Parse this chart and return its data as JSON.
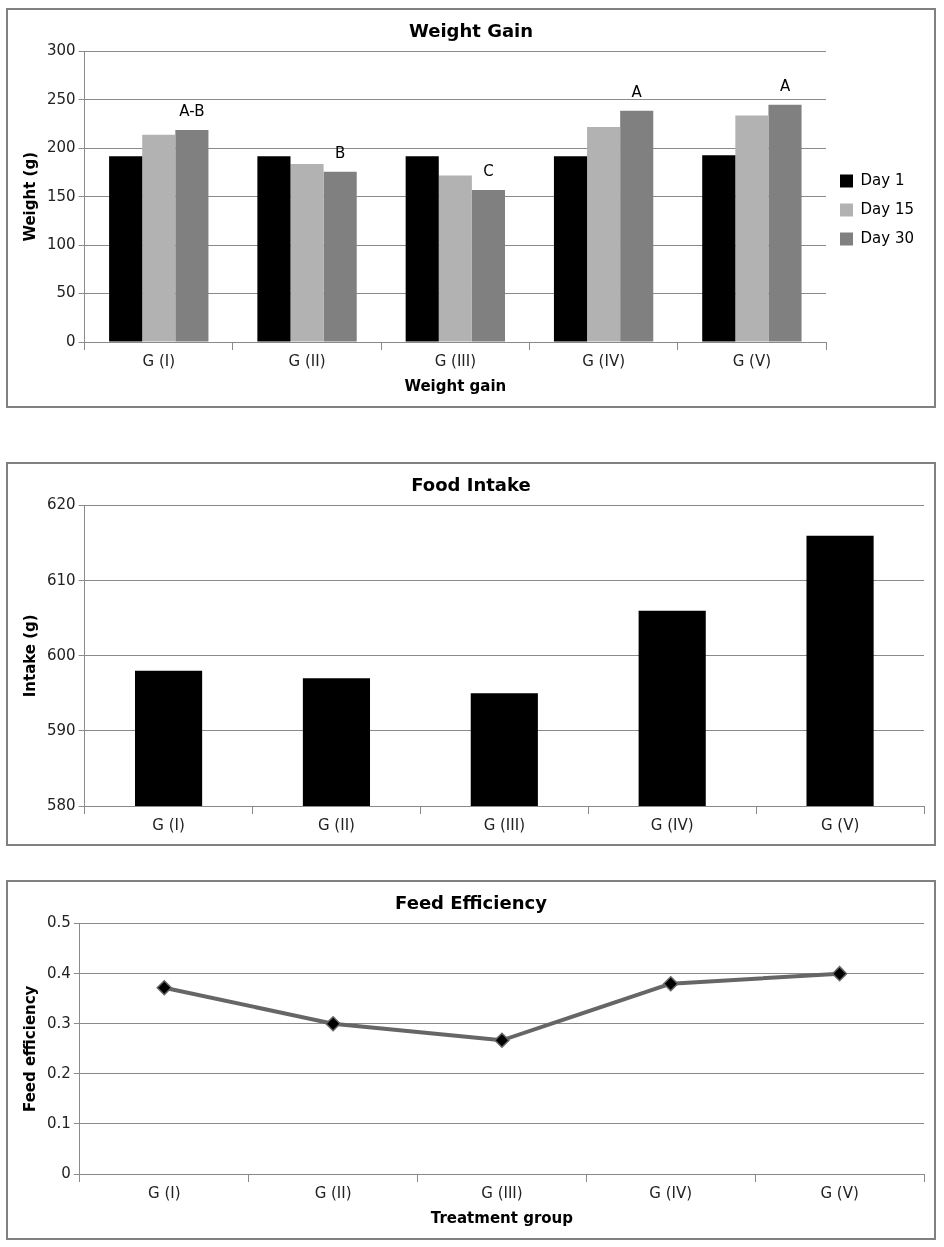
{
  "chart_data": [
    {
      "type": "bar",
      "title": "Weight Gain",
      "xlabel": "Weight gain",
      "ylabel": "Weight (g)",
      "categories": [
        "G (I)",
        "G (II)",
        "G (III)",
        "G (IV)",
        "G (V)"
      ],
      "series": [
        {
          "name": "Day 1",
          "color": "#000000",
          "values": [
            192,
            192,
            192,
            192,
            193
          ]
        },
        {
          "name": "Day 15",
          "color": "#b2b2b2",
          "values": [
            214,
            184,
            172,
            222,
            234
          ]
        },
        {
          "name": "Day 30",
          "color": "#808080",
          "values": [
            219,
            176,
            157,
            239,
            245
          ]
        }
      ],
      "ylim": [
        0,
        300
      ],
      "yticks": [
        0,
        50,
        100,
        150,
        200,
        250,
        300
      ],
      "grid": "y",
      "legend": "right",
      "annotations": [
        "A-B",
        "B",
        "C",
        "A",
        "A"
      ]
    },
    {
      "type": "bar",
      "title": "Food Intake",
      "ylabel": "Intake (g)",
      "categories": [
        "G (I)",
        "G (II)",
        "G (III)",
        "G (IV)",
        "G (V)"
      ],
      "series": [
        {
          "color": "#000000",
          "values": [
            598,
            597,
            595,
            606,
            616
          ]
        }
      ],
      "ylim": [
        580,
        620
      ],
      "yticks": [
        580,
        590,
        600,
        610,
        620
      ],
      "grid": "y"
    },
    {
      "type": "line",
      "title": "Feed Efficiency",
      "xlabel": "Treatment group",
      "ylabel": "Feed efficiency",
      "categories": [
        "G (I)",
        "G (II)",
        "G (III)",
        "G (IV)",
        "G (V)"
      ],
      "series": [
        {
          "color": "#666666",
          "values": [
            0.372,
            0.3,
            0.267,
            0.38,
            0.4
          ]
        }
      ],
      "ylim": [
        0,
        0.5
      ],
      "yticks": [
        0,
        0.1,
        0.2,
        0.3,
        0.4,
        0.5
      ],
      "grid": "y",
      "marker": "diamond",
      "line_style": "solid"
    }
  ]
}
